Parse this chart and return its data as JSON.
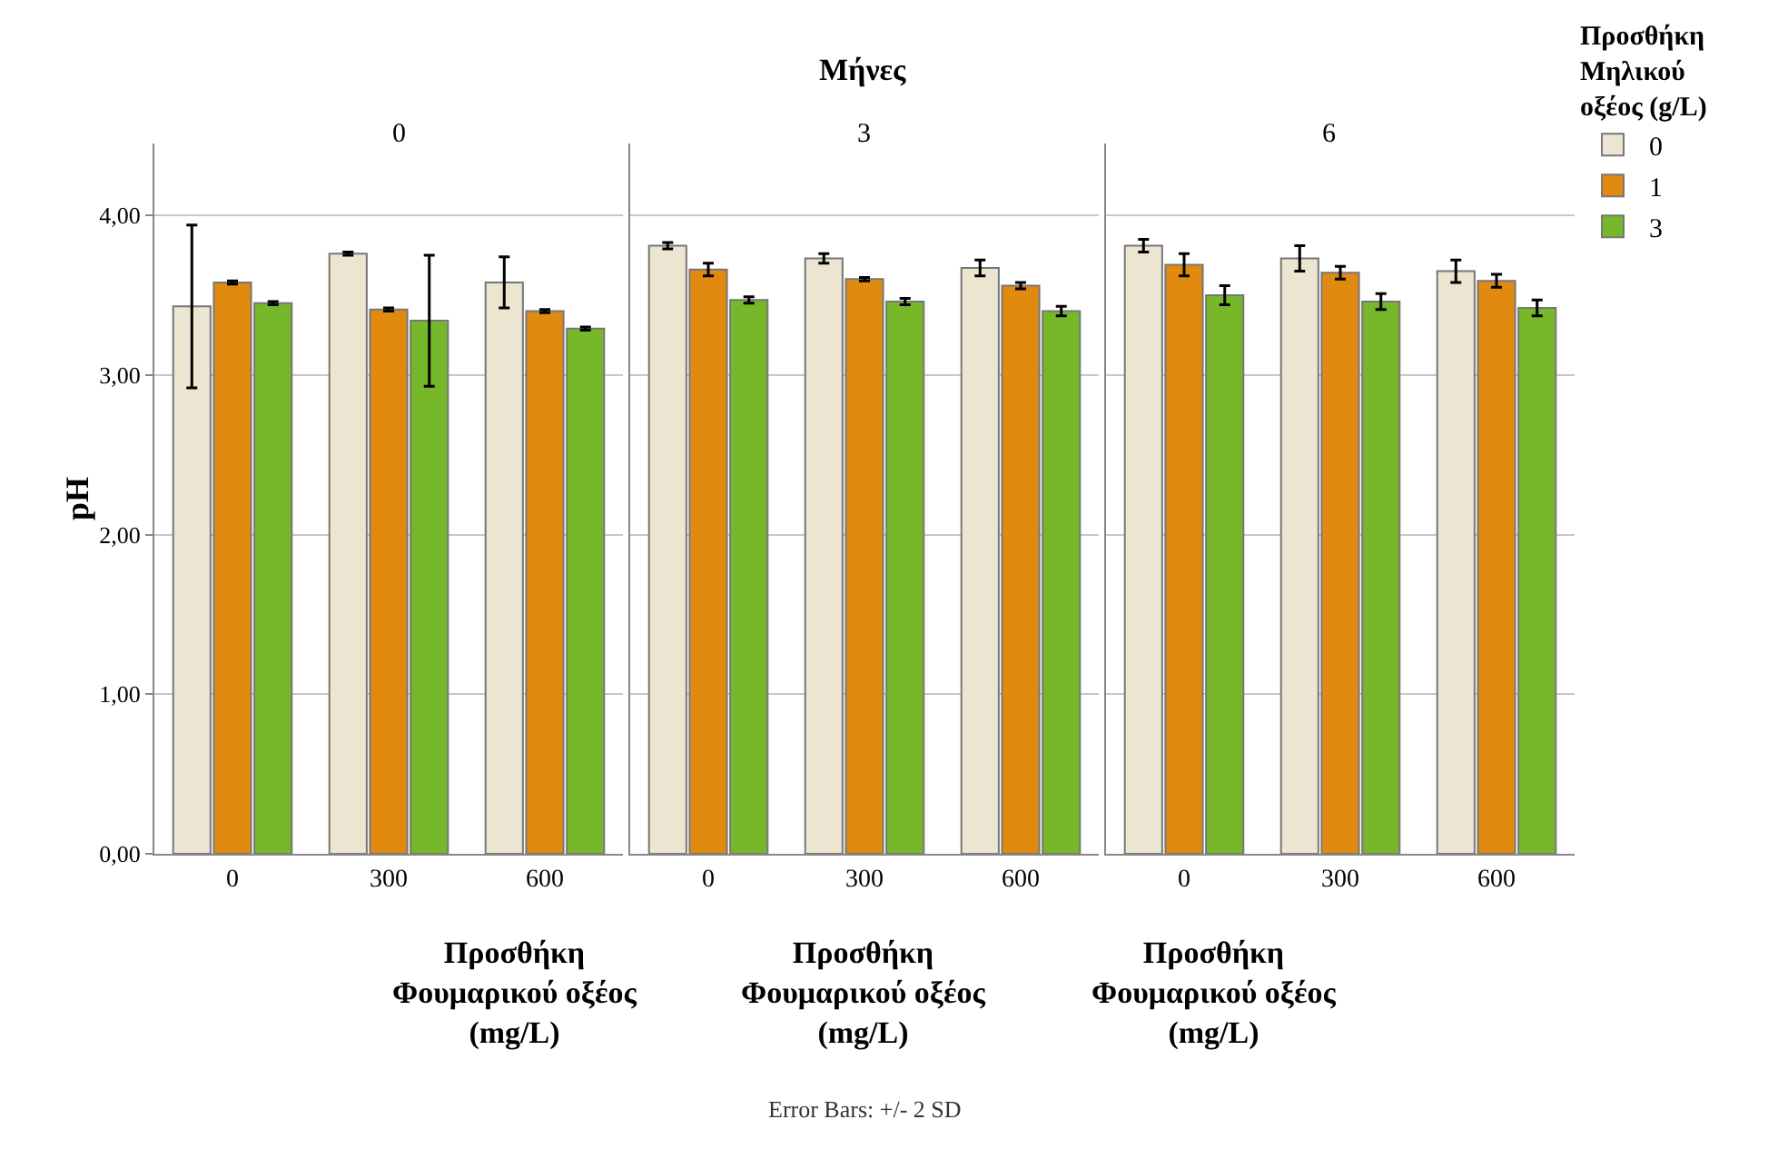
{
  "chart_data": [
    {
      "type": "bar",
      "subtitle": "0",
      "ylabel": "pH",
      "xlabel": "Προσθήκη Φουμαρικού οξέος (mg/L)",
      "categories": [
        "0",
        "300",
        "600"
      ],
      "series": [
        {
          "color": "#ebe5d1",
          "values": [
            3.43,
            3.76,
            3.58
          ],
          "errors": [
            0.51,
            0.01,
            0.16
          ]
        },
        {
          "color": "#e08a0f",
          "values": [
            3.58,
            3.41,
            3.4
          ],
          "errors": [
            0.01,
            0.01,
            0.01
          ]
        },
        {
          "color": "#76b82a",
          "values": [
            3.45,
            3.34,
            3.29
          ],
          "errors": [
            0.01,
            0.41,
            0.01
          ]
        }
      ],
      "ylim": [
        0,
        4.45
      ],
      "yticks": [
        {
          "value": 0,
          "label": "0,00"
        },
        {
          "value": 1,
          "label": "1,00"
        },
        {
          "value": 2,
          "label": "2,00"
        },
        {
          "value": 3,
          "label": "3,00"
        },
        {
          "value": 4,
          "label": "4,00"
        }
      ],
      "grid": "y"
    },
    {
      "type": "bar",
      "title": "Μήνες",
      "subtitle": "3",
      "xlabel": "Προσθήκη Φουμαρικού οξέος (mg/L)",
      "categories": [
        "0",
        "300",
        "600"
      ],
      "series": [
        {
          "color": "#ebe5d1",
          "values": [
            3.81,
            3.73,
            3.67
          ],
          "errors": [
            0.02,
            0.03,
            0.05
          ]
        },
        {
          "color": "#e08a0f",
          "values": [
            3.66,
            3.6,
            3.56
          ],
          "errors": [
            0.04,
            0.01,
            0.02
          ]
        },
        {
          "color": "#76b82a",
          "values": [
            3.47,
            3.46,
            3.4
          ],
          "errors": [
            0.02,
            0.02,
            0.03
          ]
        }
      ],
      "ylim": [
        0,
        4.45
      ],
      "yticks": [
        0,
        1,
        2,
        3,
        4
      ],
      "grid": "y",
      "tick_labels": "x",
      "annotations": [
        "Error Bars: +/- 2 SD"
      ]
    },
    {
      "type": "bar",
      "subtitle": "6",
      "xlabel": "Προσθήκη Φουμαρικού οξέος (mg/L)",
      "categories": [
        "0",
        "300",
        "600"
      ],
      "series": [
        {
          "name": "0",
          "color": "#ebe5d1",
          "values": [
            3.81,
            3.73,
            3.65
          ],
          "errors": [
            0.04,
            0.08,
            0.07
          ]
        },
        {
          "name": "1",
          "color": "#e08a0f",
          "values": [
            3.69,
            3.64,
            3.59
          ],
          "errors": [
            0.07,
            0.04,
            0.04
          ]
        },
        {
          "name": "3",
          "color": "#76b82a",
          "values": [
            3.5,
            3.46,
            3.42
          ],
          "errors": [
            0.06,
            0.05,
            0.05
          ]
        }
      ],
      "ylim": [
        0,
        4.45
      ],
      "yticks": [
        0,
        1,
        2,
        3,
        4
      ],
      "grid": "y",
      "tick_labels": "x",
      "legend": "right",
      "legend_title": "Προσθήκη Μηλικού οξέος (g/L)"
    }
  ]
}
